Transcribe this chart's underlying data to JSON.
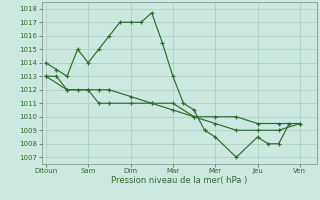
{
  "title": "",
  "xlabel": "Pression niveau de la mer( hPa )",
  "bg_color": "#cce8e0",
  "grid_color": "#a8ccbf",
  "line_color": "#2a6e2a",
  "xtick_labels": [
    "Ditoun",
    "Sam",
    "Dim",
    "Mar",
    "Mer",
    "Jeu",
    "Ven"
  ],
  "xtick_positions": [
    0,
    2,
    4,
    6,
    8,
    10,
    12
  ],
  "ylim": [
    1006.5,
    1018.5
  ],
  "yticks": [
    1007,
    1008,
    1009,
    1010,
    1011,
    1012,
    1013,
    1014,
    1015,
    1016,
    1017,
    1018
  ],
  "xlim": [
    -0.2,
    12.8
  ],
  "series": [
    {
      "x": [
        0,
        0.5,
        1.0,
        2.0,
        2.5,
        3.0,
        4.0,
        5.0,
        6.0,
        7.0,
        8.0,
        9.0,
        10.0,
        11.0,
        12.0
      ],
      "y": [
        1013,
        1013,
        1012,
        1012,
        1011,
        1011,
        1011,
        1011,
        1011,
        1010,
        1010,
        1010,
        1009.5,
        1009.5,
        1009.5
      ]
    },
    {
      "x": [
        0,
        0.5,
        1.0,
        1.5,
        2.0,
        2.5,
        3.0,
        3.5,
        4.0,
        4.5,
        5.0,
        5.5,
        6.0,
        6.5,
        7.0,
        7.5,
        8.0,
        9.0,
        10.0,
        10.5,
        11.0,
        11.5
      ],
      "y": [
        1014,
        1013.5,
        1013,
        1015,
        1014,
        1015,
        1016,
        1017,
        1017,
        1017,
        1017.7,
        1015.5,
        1013,
        1011,
        1010.5,
        1009,
        1008.5,
        1007,
        1008.5,
        1008,
        1008,
        1009.5
      ]
    },
    {
      "x": [
        0,
        1.0,
        1.5,
        2.0,
        2.5,
        3.0,
        4.0,
        5.0,
        6.0,
        7.0,
        8.0,
        9.0,
        10.0,
        11.0,
        12.0
      ],
      "y": [
        1013,
        1012,
        1012,
        1012,
        1012,
        1012,
        1011.5,
        1011,
        1010.5,
        1010,
        1009.5,
        1009,
        1009,
        1009,
        1009.5
      ]
    }
  ]
}
